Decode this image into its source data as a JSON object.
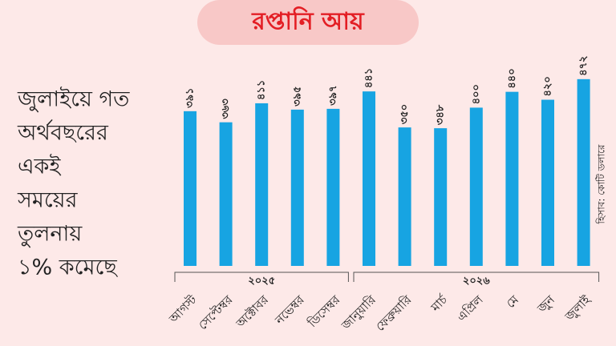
{
  "chart_data": {
    "type": "bar",
    "title": "রপ্তানি আয়",
    "annotation_lines": [
      "জুলাইয়ে গত",
      "অর্থবছরের",
      "একই",
      "সময়ের",
      "তুলনায়",
      "১% কমেছে"
    ],
    "unit_note": "হিসাব: কোটি ডলারে",
    "categories": [
      "আগস্ট",
      "সেপ্টেম্বর",
      "অক্টোবর",
      "নভেম্বর",
      "ডিসেম্বর",
      "জানুয়ারি",
      "ফেব্রুয়ারি",
      "মার্চ",
      "এপ্রিল",
      "মে",
      "জুন",
      "জুলাই"
    ],
    "values": [
      391,
      363,
      411,
      395,
      397,
      441,
      350,
      348,
      400,
      440,
      420,
      472
    ],
    "value_labels": [
      "৩৯১",
      "৩৬৩",
      "৪১১",
      "৩৯৫",
      "৩৯৭",
      "৪৪১",
      "৩৫০",
      "৩৪৮",
      "৪০০",
      "৪৪০",
      "৪২০",
      "৪৭২"
    ],
    "x_groups": [
      {
        "label": "২০২৫",
        "count": 5
      },
      {
        "label": "২০২৬",
        "count": 7
      }
    ],
    "color": "#17a4e2"
  }
}
